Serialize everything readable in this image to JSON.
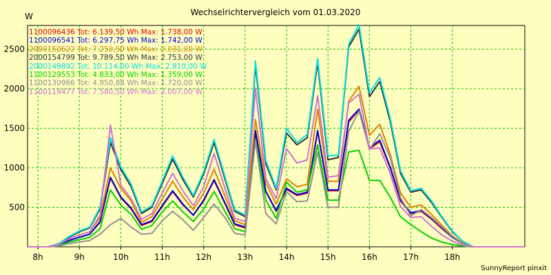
{
  "chart_data": {
    "type": "line",
    "title": "Wechselrichtervergleich vom 01.03.2020",
    "ylabel": "W",
    "credit": "SunnyReport pinxit",
    "x": [
      "7:45",
      "8:00",
      "8:15",
      "8:30",
      "8:45",
      "9:00",
      "9:15",
      "9:30",
      "9:45",
      "10:00",
      "10:15",
      "10:30",
      "10:45",
      "11:00",
      "11:15",
      "11:30",
      "11:45",
      "12:00",
      "12:15",
      "12:30",
      "12:45",
      "13:00",
      "13:15",
      "13:30",
      "13:45",
      "14:00",
      "14:15",
      "14:30",
      "14:45",
      "15:00",
      "15:15",
      "15:30",
      "15:45",
      "16:00",
      "16:15",
      "16:30",
      "16:45",
      "17:00",
      "17:15",
      "17:30",
      "17:45",
      "18:00",
      "18:15",
      "18:30",
      "18:45",
      "19:00",
      "19:15",
      "19:30",
      "19:45"
    ],
    "x_ticks": [
      "8h",
      "9h",
      "10h",
      "11h",
      "12h",
      "13h",
      "14h",
      "15h",
      "16h",
      "17h",
      "18h"
    ],
    "y_ticks": [
      500,
      1000,
      1500,
      2000,
      2500
    ],
    "ylim": [
      0,
      2800
    ],
    "grid": true,
    "legend_position": "top-left",
    "series": [
      {
        "name": "1100096436 Tot: 6.139,50 Wh Max: 1.738,00 W",
        "color": "#e00000",
        "values": [
          0,
          0,
          0,
          20,
          80,
          120,
          160,
          310,
          870,
          620,
          480,
          270,
          320,
          510,
          700,
          530,
          400,
          580,
          840,
          560,
          280,
          240,
          1440,
          700,
          450,
          730,
          650,
          680,
          1460,
          710,
          710,
          1580,
          1735,
          1240,
          1330,
          1000,
          580,
          420,
          450,
          350,
          230,
          120,
          40,
          0,
          0,
          0,
          0,
          0,
          0
        ]
      },
      {
        "name": "1100096541 Tot: 6.297,75 Wh Max: 1.742,00 W",
        "color": "#0000e0",
        "values": [
          0,
          0,
          0,
          20,
          80,
          120,
          160,
          320,
          880,
          630,
          490,
          280,
          330,
          520,
          710,
          540,
          400,
          590,
          850,
          570,
          290,
          250,
          1470,
          700,
          460,
          740,
          660,
          690,
          1470,
          720,
          720,
          1600,
          1742,
          1250,
          1350,
          1010,
          590,
          430,
          460,
          360,
          240,
          120,
          40,
          0,
          0,
          0,
          0,
          0,
          0
        ]
      },
      {
        "name": "2000150622 Tot: 7.250,50 Wh Max: 2.031,00 W",
        "color": "#e08000",
        "values": [
          0,
          0,
          0,
          30,
          100,
          150,
          190,
          370,
          1000,
          740,
          580,
          310,
          380,
          600,
          830,
          630,
          470,
          680,
          980,
          660,
          330,
          280,
          1610,
          810,
          540,
          860,
          760,
          790,
          1740,
          830,
          830,
          1840,
          2031,
          1410,
          1550,
          1170,
          680,
          500,
          530,
          410,
          270,
          140,
          50,
          0,
          0,
          0,
          0,
          0,
          0
        ]
      },
      {
        "name": "2000154799 Tot: 9.789,50 Wh Max: 2.753,00 W",
        "color": "#303030",
        "values": [
          0,
          0,
          0,
          40,
          120,
          190,
          240,
          480,
          1320,
          980,
          760,
          420,
          500,
          800,
          1110,
          850,
          630,
          920,
          1320,
          880,
          450,
          380,
          2300,
          1050,
          720,
          1440,
          1290,
          1380,
          2330,
          1100,
          1130,
          2530,
          2753,
          1900,
          2090,
          1590,
          930,
          690,
          720,
          560,
          370,
          190,
          70,
          0,
          0,
          0,
          0,
          0,
          0
        ]
      },
      {
        "name": "2000149892 Tot: 10.114,00 Wh Max: 2.810,00 W",
        "color": "#00e0e0",
        "values": [
          0,
          0,
          0,
          40,
          130,
          200,
          250,
          500,
          1380,
          1010,
          790,
          440,
          520,
          830,
          1150,
          880,
          650,
          950,
          1360,
          910,
          470,
          400,
          2350,
          1090,
          740,
          1500,
          1320,
          1420,
          2380,
          1150,
          1160,
          2560,
          2810,
          1950,
          2140,
          1630,
          960,
          710,
          740,
          580,
          380,
          200,
          70,
          0,
          0,
          0,
          0,
          0,
          0
        ]
      },
      {
        "name": "1100129553 Tot: 4.833,00 Wh Max: 1.359,00 W",
        "color": "#00d000",
        "values": [
          0,
          0,
          0,
          15,
          60,
          90,
          120,
          230,
          720,
          530,
          410,
          220,
          270,
          440,
          580,
          440,
          320,
          480,
          700,
          460,
          230,
          190,
          1359,
          590,
          360,
          820,
          690,
          720,
          1290,
          590,
          590,
          1200,
          1220,
          840,
          840,
          630,
          380,
          280,
          190,
          110,
          60,
          30,
          10,
          0,
          0,
          0,
          0,
          0,
          0
        ]
      },
      {
        "name": "1100130966 Tot: 4.950,88 Wh Max: 1.720,00 W",
        "color": "#909090",
        "values": [
          0,
          0,
          0,
          10,
          40,
          60,
          80,
          160,
          280,
          360,
          250,
          160,
          170,
          330,
          450,
          340,
          210,
          370,
          540,
          380,
          170,
          150,
          1340,
          420,
          290,
          700,
          570,
          580,
          1200,
          500,
          500,
          1460,
          1720,
          1230,
          1430,
          1130,
          620,
          390,
          470,
          370,
          250,
          130,
          40,
          0,
          0,
          0,
          0,
          0,
          0
        ]
      },
      {
        "name": "1100119477 Tot: 7.580,50 Wh Max: 2.007,00 W",
        "color": "#d070d0",
        "values": [
          0,
          0,
          0,
          30,
          100,
          150,
          190,
          400,
          1540,
          780,
          610,
          350,
          420,
          680,
          930,
          710,
          520,
          760,
          1180,
          760,
          360,
          320,
          2007,
          860,
          610,
          1240,
          1060,
          1100,
          1910,
          880,
          900,
          1820,
          1930,
          1240,
          1250,
          930,
          510,
          370,
          380,
          260,
          150,
          70,
          20,
          0,
          0,
          0,
          0,
          0,
          0
        ]
      }
    ]
  }
}
